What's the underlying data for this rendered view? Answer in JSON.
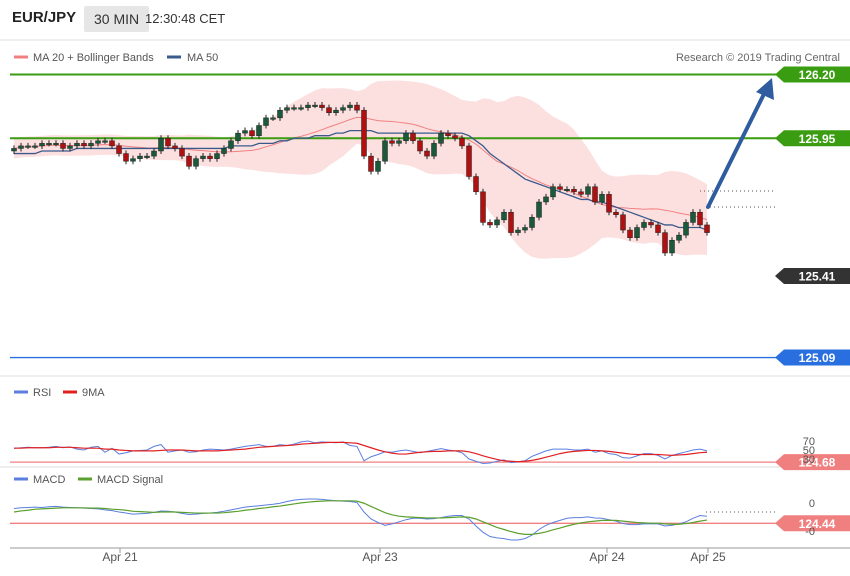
{
  "header": {
    "pair": "EUR/JPY",
    "timeframe": "30 MIN",
    "time": "12:30:48 CET"
  },
  "main_legend": [
    {
      "label": "MA 20 + Bollinger Bands",
      "color": "#f08080"
    },
    {
      "label": "MA 50",
      "color": "#3a5a8c"
    }
  ],
  "copyright": "Research © 2019 Trading Central",
  "price_scale": [
    126.1,
    125.1
  ],
  "levels": [
    {
      "value": "126.20",
      "color": "#3a9c10",
      "label": "126.20"
    },
    {
      "value": "125.95",
      "color": "#3a9c10",
      "label": "125.95"
    },
    {
      "value": "125.41",
      "color": "#333333",
      "label": "125.41"
    },
    {
      "value": "125.09",
      "color": "#2a6fe0",
      "label": "125.09"
    },
    {
      "value": "124.68",
      "color": "#f08080",
      "label": "124.68"
    },
    {
      "value": "124.44",
      "color": "#f08080",
      "label": "124.44"
    }
  ],
  "rsi_legend": [
    {
      "label": "RSI",
      "color": "#5b7fe0"
    },
    {
      "label": "9MA",
      "color": "#e02020"
    }
  ],
  "rsi_ticks": [
    "70",
    "50",
    "30"
  ],
  "macd_legend": [
    {
      "label": "MACD",
      "color": "#5b7fe0"
    },
    {
      "label": "MACD Signal",
      "color": "#5aa02c"
    }
  ],
  "macd_ticks": [
    "0",
    "-0"
  ],
  "x_axis": [
    "Apr 21",
    "Apr 23",
    "Apr 24",
    "Apr 25"
  ],
  "chart_data": [
    {
      "type": "candlestick",
      "title": "EUR/JPY 30 MIN",
      "series_names": [
        "MA 20 + Bollinger Bands",
        "MA 50"
      ],
      "close": [
        125.91,
        125.92,
        125.92,
        125.92,
        125.93,
        125.93,
        125.93,
        125.91,
        125.92,
        125.93,
        125.92,
        125.93,
        125.94,
        125.94,
        125.92,
        125.89,
        125.86,
        125.87,
        125.88,
        125.88,
        125.9,
        125.95,
        125.92,
        125.91,
        125.88,
        125.84,
        125.87,
        125.88,
        125.87,
        125.89,
        125.91,
        125.94,
        125.97,
        125.98,
        125.96,
        126.0,
        126.03,
        126.03,
        126.06,
        126.07,
        126.07,
        126.07,
        126.08,
        126.08,
        126.07,
        126.05,
        126.06,
        126.07,
        126.08,
        126.06,
        125.88,
        125.82,
        125.86,
        125.94,
        125.93,
        125.94,
        125.97,
        125.94,
        125.9,
        125.88,
        125.93,
        125.97,
        125.96,
        125.95,
        125.92,
        125.8,
        125.74,
        125.62,
        125.61,
        125.63,
        125.66,
        125.58,
        125.59,
        125.6,
        125.64,
        125.7,
        125.72,
        125.76,
        125.75,
        125.75,
        125.74,
        125.73,
        125.76,
        125.7,
        125.73,
        125.66,
        125.65,
        125.59,
        125.56,
        125.6,
        125.62,
        125.61,
        125.58,
        125.5,
        125.55,
        125.57,
        125.62,
        125.66,
        125.61,
        125.58
      ],
      "ma50": [
        125.89,
        125.89,
        125.89,
        125.89,
        125.9,
        125.9,
        125.9,
        125.9,
        125.9,
        125.91,
        125.91,
        125.91,
        125.91,
        125.91,
        125.91,
        125.91,
        125.91,
        125.91,
        125.91,
        125.91,
        125.91,
        125.91,
        125.91,
        125.91,
        125.91,
        125.91,
        125.91,
        125.91,
        125.91,
        125.91,
        125.91,
        125.92,
        125.92,
        125.92,
        125.92,
        125.93,
        125.93,
        125.93,
        125.94,
        125.94,
        125.95,
        125.95,
        125.95,
        125.96,
        125.96,
        125.96,
        125.97,
        125.97,
        125.98,
        125.98,
        125.98,
        125.98,
        125.97,
        125.97,
        125.97,
        125.97,
        125.97,
        125.97,
        125.97,
        125.97,
        125.97,
        125.97,
        125.97,
        125.97,
        125.97,
        125.96,
        125.94,
        125.92,
        125.89,
        125.87,
        125.85,
        125.83,
        125.81,
        125.79,
        125.78,
        125.77,
        125.76,
        125.75,
        125.74,
        125.73,
        125.72,
        125.71,
        125.71,
        125.7,
        125.7,
        125.69,
        125.68,
        125.67,
        125.66,
        125.65,
        125.64,
        125.63,
        125.62,
        125.61,
        125.61,
        125.6,
        125.6,
        125.6,
        125.6,
        125.59
      ]
    },
    {
      "type": "line",
      "title": "RSI",
      "series_names": [
        "RSI",
        "9MA"
      ],
      "ylim": [
        20,
        80
      ],
      "rsi": [
        54,
        55,
        56,
        55,
        55,
        56,
        58,
        55,
        57,
        52,
        50,
        56,
        58,
        45,
        54,
        41,
        44,
        48,
        49,
        50,
        58,
        62,
        45,
        48,
        50,
        45,
        46,
        50,
        52,
        51,
        50,
        52,
        55,
        58,
        60,
        62,
        58,
        58,
        62,
        60,
        63,
        68,
        70,
        66,
        68,
        67,
        66,
        68,
        60,
        58,
        26,
        35,
        40,
        46,
        45,
        48,
        50,
        47,
        44,
        47,
        50,
        53,
        50,
        48,
        44,
        30,
        25,
        20,
        21,
        25,
        28,
        22,
        24,
        26,
        36,
        42,
        48,
        52,
        52,
        52,
        50,
        50,
        52,
        45,
        48,
        42,
        40,
        33,
        32,
        37,
        42,
        42,
        38,
        30,
        38,
        42,
        46,
        50,
        52,
        48
      ],
      "ma9": [
        54,
        54,
        55,
        55,
        55,
        55,
        56,
        56,
        56,
        55,
        54,
        54,
        54,
        52,
        52,
        50,
        49,
        48,
        48,
        48,
        48,
        49,
        50,
        50,
        50,
        49,
        48,
        48,
        48,
        48,
        49,
        50,
        51,
        52,
        54,
        56,
        57,
        58,
        59,
        60,
        61,
        63,
        64,
        65,
        66,
        67,
        67,
        67,
        66,
        65,
        60,
        55,
        50,
        46,
        43,
        41,
        41,
        43,
        45,
        46,
        47,
        47,
        48,
        48,
        48,
        46,
        42,
        37,
        33,
        29,
        26,
        25,
        24,
        25,
        27,
        30,
        34,
        38,
        42,
        45,
        47,
        48,
        49,
        49,
        48,
        47,
        45,
        43,
        41,
        40,
        40,
        40,
        40,
        39,
        38,
        39,
        40,
        42,
        44,
        45
      ]
    },
    {
      "type": "line",
      "title": "MACD",
      "series_names": [
        "MACD",
        "MACD Signal"
      ],
      "macd": [
        0.01,
        0.012,
        0.013,
        0.014,
        0.013,
        0.015,
        0.016,
        0.014,
        0.013,
        0.012,
        0.011,
        0.01,
        0.009,
        0.006,
        0.004,
        0.0,
        -0.003,
        -0.006,
        -0.005,
        -0.004,
        -0.001,
        0.003,
        0.002,
        0.0,
        -0.004,
        -0.007,
        -0.006,
        -0.004,
        -0.003,
        -0.001,
        0.002,
        0.006,
        0.01,
        0.014,
        0.016,
        0.018,
        0.02,
        0.022,
        0.025,
        0.03,
        0.034,
        0.036,
        0.037,
        0.037,
        0.036,
        0.034,
        0.032,
        0.031,
        0.03,
        0.027,
        0.0,
        -0.02,
        -0.03,
        -0.038,
        -0.034,
        -0.028,
        -0.022,
        -0.018,
        -0.018,
        -0.02,
        -0.019,
        -0.016,
        -0.012,
        -0.01,
        -0.01,
        -0.02,
        -0.04,
        -0.058,
        -0.07,
        -0.074,
        -0.076,
        -0.08,
        -0.08,
        -0.076,
        -0.066,
        -0.05,
        -0.038,
        -0.03,
        -0.024,
        -0.018,
        -0.016,
        -0.016,
        -0.014,
        -0.017,
        -0.018,
        -0.022,
        -0.026,
        -0.033,
        -0.036,
        -0.036,
        -0.034,
        -0.034,
        -0.034,
        -0.04,
        -0.038,
        -0.034,
        -0.028,
        -0.018,
        -0.01,
        -0.012
      ],
      "signal": [
        0.0,
        0.003,
        0.005,
        0.008,
        0.009,
        0.01,
        0.011,
        0.012,
        0.012,
        0.012,
        0.012,
        0.011,
        0.011,
        0.01,
        0.008,
        0.007,
        0.005,
        0.002,
        0.001,
        -0.0,
        -0.001,
        -0.0,
        -0.0,
        -0.0,
        -0.001,
        -0.002,
        -0.003,
        -0.003,
        -0.003,
        -0.003,
        -0.002,
        -0.0,
        0.002,
        0.005,
        0.007,
        0.01,
        0.012,
        0.015,
        0.017,
        0.02,
        0.023,
        0.026,
        0.028,
        0.03,
        0.031,
        0.032,
        0.032,
        0.032,
        0.032,
        0.031,
        0.025,
        0.016,
        0.007,
        -0.002,
        -0.008,
        -0.012,
        -0.014,
        -0.015,
        -0.016,
        -0.017,
        -0.017,
        -0.017,
        -0.016,
        -0.015,
        -0.014,
        -0.015,
        -0.02,
        -0.028,
        -0.036,
        -0.044,
        -0.05,
        -0.056,
        -0.061,
        -0.064,
        -0.064,
        -0.061,
        -0.057,
        -0.051,
        -0.046,
        -0.04,
        -0.035,
        -0.031,
        -0.028,
        -0.026,
        -0.024,
        -0.024,
        -0.024,
        -0.026,
        -0.028,
        -0.03,
        -0.031,
        -0.032,
        -0.032,
        -0.034,
        -0.035,
        -0.035,
        -0.033,
        -0.03,
        -0.026,
        -0.023
      ]
    }
  ]
}
